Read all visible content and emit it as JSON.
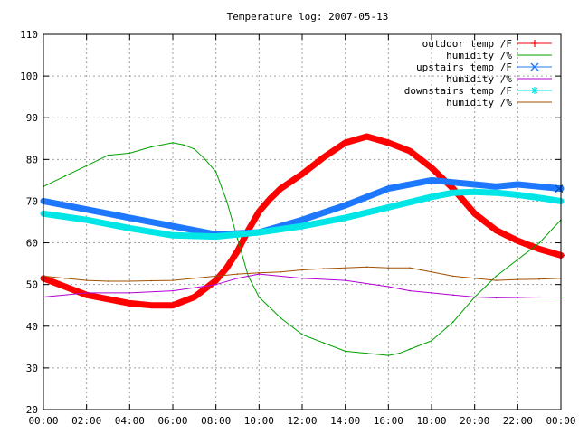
{
  "chart_data": {
    "type": "line",
    "title": "Temperature log: 2007-05-13",
    "xlabel": "",
    "ylabel": "",
    "x_unit": "hours",
    "xlim": [
      0,
      24
    ],
    "ylim": [
      20,
      110
    ],
    "x_tick_labels": [
      "00:00",
      "02:00",
      "04:00",
      "06:00",
      "08:00",
      "10:00",
      "12:00",
      "14:00",
      "16:00",
      "18:00",
      "20:00",
      "22:00",
      "00:00"
    ],
    "y_ticks": [
      20,
      30,
      40,
      50,
      60,
      70,
      80,
      90,
      100,
      110
    ],
    "grid": true,
    "legend_position": "top-right",
    "series": [
      {
        "name": "outdoor temp /F",
        "color": "#ff0000",
        "marker": "plus",
        "weight": "heavy",
        "x": [
          0,
          1,
          2,
          3,
          4,
          5,
          6,
          7,
          7.5,
          8,
          8.5,
          9,
          9.5,
          10,
          10.5,
          11,
          12,
          13,
          14,
          15,
          16,
          16.5,
          17,
          18,
          19,
          19.5,
          20,
          21,
          22,
          23,
          24
        ],
        "y": [
          51.5,
          49.5,
          47.5,
          46.5,
          45.5,
          45,
          45,
          47,
          49,
          51,
          54,
          58,
          63,
          67.5,
          70.5,
          73,
          76.5,
          80.5,
          84,
          85.5,
          84,
          83,
          82,
          78,
          73,
          70,
          67,
          63,
          60.5,
          58.5,
          57
        ]
      },
      {
        "name": "humidity /%",
        "color": "#00a000",
        "marker": "none",
        "weight": "thin",
        "x": [
          0,
          1,
          2,
          3,
          4,
          5,
          6,
          6.5,
          7,
          7.5,
          8,
          8.5,
          9,
          9.5,
          10,
          11,
          12,
          13,
          14,
          15,
          16,
          16.5,
          17,
          18,
          19,
          20,
          21,
          22,
          23,
          24
        ],
        "y": [
          73.5,
          76,
          78.5,
          81,
          81.5,
          83,
          84,
          83.5,
          82.5,
          80,
          77,
          70,
          61,
          52,
          47,
          42,
          38,
          36,
          34,
          33.5,
          33,
          33.5,
          34.5,
          36.5,
          41,
          47,
          52,
          56,
          60,
          65.5
        ]
      },
      {
        "name": "upstairs temp /F",
        "color": "#1e78ff",
        "marker": "cross",
        "weight": "heavy",
        "x": [
          0,
          2,
          4,
          6,
          8,
          10,
          12,
          14,
          16,
          18,
          19,
          20,
          21,
          22,
          23,
          24
        ],
        "y": [
          70,
          68,
          66,
          64,
          62,
          62.5,
          65.5,
          69,
          73,
          75,
          74.5,
          74,
          73.5,
          74,
          73.5,
          73
        ]
      },
      {
        "name": "humidity /%",
        "color": "#b000d0",
        "marker": "none",
        "weight": "thin",
        "x": [
          0,
          2,
          4,
          6,
          8,
          9,
          10,
          12,
          14,
          16,
          17,
          18,
          19,
          20,
          21,
          22,
          23,
          24
        ],
        "y": [
          47,
          48,
          48,
          48.5,
          50,
          51.5,
          52.5,
          51.5,
          51,
          49.5,
          48.5,
          48,
          47.5,
          47,
          46.8,
          46.9,
          47,
          47
        ]
      },
      {
        "name": "downstairs temp /F",
        "color": "#00e6e6",
        "marker": "star",
        "weight": "heavy",
        "x": [
          0,
          2,
          4,
          6,
          8,
          10,
          12,
          14,
          16,
          18,
          19,
          20,
          21,
          22,
          23,
          24
        ],
        "y": [
          67,
          65.5,
          63.5,
          61.8,
          61.5,
          62.5,
          64,
          66,
          68.5,
          71,
          72,
          72.2,
          72,
          71.5,
          70.8,
          70
        ]
      },
      {
        "name": "humidity /%",
        "color": "#a05000",
        "marker": "none",
        "weight": "thin",
        "x": [
          0,
          1,
          2,
          3,
          4,
          5,
          6,
          7,
          8,
          9,
          10,
          11,
          12,
          13,
          14,
          15,
          16,
          17,
          17.5,
          18,
          19,
          20,
          21,
          22,
          23,
          24
        ],
        "y": [
          52,
          51.5,
          51,
          50.8,
          50.8,
          50.9,
          51,
          51.5,
          52,
          52.5,
          52.8,
          53,
          53.5,
          53.8,
          54,
          54.2,
          54,
          54,
          53.5,
          53,
          52,
          51.5,
          51,
          51.2,
          51.3,
          51.5
        ]
      }
    ]
  }
}
